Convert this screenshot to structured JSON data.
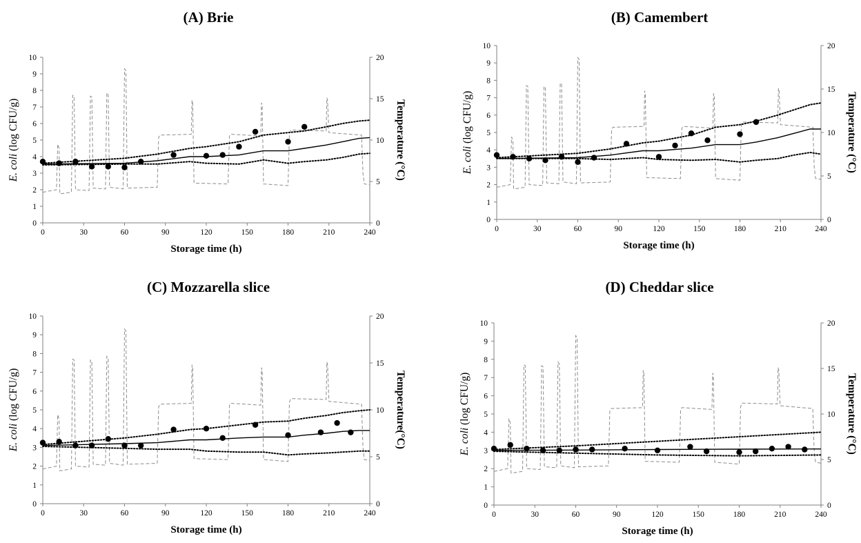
{
  "colors": {
    "axis": "#7f7f7f",
    "temperature": "#8c8c8c",
    "data": "#000000"
  },
  "chart_data": [
    {
      "type": "line",
      "title": "(A) Brie",
      "xlabel": "Storage time (h)",
      "ylabel_italic": "E. coli",
      "ylabel_rest": " (log CFU/g)",
      "y2label": "Temperature (°C)",
      "xlim": [
        0,
        240
      ],
      "ylim": [
        0,
        10
      ],
      "y2lim": [
        0,
        20
      ],
      "x_ticks": [
        "0",
        "30",
        "60",
        "90",
        "120",
        "150",
        "180",
        "210",
        "240"
      ],
      "y_ticks": [
        "0",
        "1",
        "2",
        "3",
        "4",
        "5",
        "6",
        "7",
        "8",
        "9",
        "10"
      ],
      "y2_ticks": [
        "0",
        "5",
        "10",
        "15",
        "20"
      ],
      "legend": "none",
      "observed": {
        "x": [
          0,
          12,
          24,
          36,
          48,
          60,
          72,
          96,
          120,
          132,
          144,
          156,
          180,
          192
        ],
        "y": [
          3.7,
          3.6,
          3.7,
          3.4,
          3.4,
          3.35,
          3.7,
          4.1,
          4.05,
          4.1,
          4.6,
          5.5,
          4.9,
          5.8
        ]
      },
      "predicted": {
        "x": [
          0,
          60,
          84,
          108,
          120,
          144,
          162,
          180,
          192,
          208,
          220,
          232,
          240
        ],
        "y": [
          3.55,
          3.6,
          3.75,
          4.0,
          4.0,
          4.1,
          4.35,
          4.35,
          4.5,
          4.7,
          4.9,
          5.1,
          5.15
        ]
      },
      "upper_bound": {
        "x": [
          0,
          60,
          84,
          108,
          120,
          144,
          162,
          180,
          192,
          208,
          220,
          232,
          240
        ],
        "y": [
          3.6,
          3.9,
          4.15,
          4.5,
          4.6,
          4.9,
          5.3,
          5.45,
          5.55,
          5.8,
          6.0,
          6.15,
          6.2
        ]
      },
      "lower_bound": {
        "x": [
          0,
          60,
          84,
          108,
          120,
          144,
          162,
          180,
          192,
          208,
          220,
          232,
          240
        ],
        "y": [
          3.5,
          3.55,
          3.55,
          3.7,
          3.6,
          3.55,
          3.8,
          3.6,
          3.7,
          3.8,
          3.95,
          4.15,
          4.2
        ]
      },
      "temperature": {
        "x": [
          0,
          10,
          11,
          12,
          12.5,
          21,
          22,
          23,
          24,
          34,
          35,
          36,
          37,
          46,
          47,
          48,
          49,
          59,
          60,
          61,
          62,
          84,
          85,
          86,
          109,
          109.5,
          110,
          111,
          136,
          137,
          138,
          160,
          160.5,
          161,
          162,
          180,
          181,
          182,
          208,
          208.5,
          209,
          210,
          234,
          235,
          236,
          240
        ],
        "y": [
          3.7,
          4,
          9.5,
          9,
          3.5,
          3.7,
          15.4,
          15.3,
          4,
          3.9,
          15.3,
          15.2,
          4.2,
          4.1,
          15.7,
          15.5,
          4.3,
          4.1,
          18.6,
          18.4,
          4.2,
          4.3,
          10.3,
          10.6,
          10.7,
          14.8,
          14.5,
          4.8,
          4.7,
          10.5,
          10.7,
          10.5,
          14.5,
          14.2,
          4.7,
          4.5,
          10.8,
          11.2,
          11.1,
          15.1,
          14.8,
          10.9,
          10.6,
          6,
          4.7,
          4.6
        ]
      }
    },
    {
      "type": "line",
      "title": "(B) Camembert",
      "xlabel": "Storage time (h)",
      "ylabel_italic": "E. coli",
      "ylabel_rest": " (log CFU/g)",
      "y2label": "Temperature (°C)",
      "xlim": [
        0,
        240
      ],
      "ylim": [
        0,
        10
      ],
      "y2lim": [
        0,
        20
      ],
      "x_ticks": [
        "0",
        "30",
        "60",
        "90",
        "120",
        "150",
        "180",
        "210",
        "240"
      ],
      "y_ticks": [
        "0",
        "1",
        "2",
        "3",
        "4",
        "5",
        "6",
        "7",
        "8",
        "9",
        "10"
      ],
      "y2_ticks": [
        "0",
        "5",
        "10",
        "15",
        "20"
      ],
      "legend": "none",
      "observed": {
        "x": [
          0,
          12,
          24,
          36,
          48,
          60,
          72,
          96,
          120,
          132,
          144,
          156,
          180,
          192
        ],
        "y": [
          3.7,
          3.6,
          3.5,
          3.4,
          3.6,
          3.3,
          3.55,
          4.35,
          3.6,
          4.25,
          4.95,
          4.55,
          4.9,
          5.6
        ]
      },
      "predicted": {
        "x": [
          0,
          60,
          84,
          108,
          120,
          144,
          162,
          180,
          192,
          208,
          220,
          232,
          240
        ],
        "y": [
          3.5,
          3.55,
          3.7,
          3.95,
          3.95,
          4.1,
          4.3,
          4.3,
          4.45,
          4.7,
          4.95,
          5.2,
          5.2
        ]
      },
      "upper_bound": {
        "x": [
          0,
          60,
          84,
          108,
          120,
          144,
          162,
          180,
          192,
          208,
          220,
          232,
          240
        ],
        "y": [
          3.55,
          3.8,
          4.05,
          4.4,
          4.5,
          4.85,
          5.3,
          5.45,
          5.65,
          6.0,
          6.3,
          6.6,
          6.7
        ]
      },
      "lower_bound": {
        "x": [
          0,
          60,
          84,
          108,
          120,
          144,
          162,
          180,
          192,
          208,
          220,
          232,
          240
        ],
        "y": [
          3.5,
          3.5,
          3.45,
          3.55,
          3.45,
          3.4,
          3.45,
          3.3,
          3.4,
          3.5,
          3.7,
          3.85,
          3.75
        ]
      },
      "temperature": {
        "x": [
          0,
          10,
          11,
          12,
          12.5,
          21,
          22,
          23,
          24,
          34,
          35,
          36,
          37,
          46,
          47,
          48,
          49,
          59,
          60,
          61,
          62,
          84,
          85,
          86,
          109,
          109.5,
          110,
          111,
          136,
          137,
          138,
          160,
          160.5,
          161,
          162,
          180,
          181,
          182,
          208,
          208.5,
          209,
          210,
          234,
          235,
          236,
          240
        ],
        "y": [
          3.7,
          4,
          9.5,
          9,
          3.5,
          3.7,
          15.4,
          15.3,
          4,
          3.9,
          15.3,
          15.2,
          4.2,
          4.1,
          15.7,
          15.5,
          4.3,
          4.1,
          18.6,
          18.4,
          4.2,
          4.3,
          10.3,
          10.6,
          10.7,
          14.8,
          14.5,
          4.8,
          4.7,
          10.5,
          10.7,
          10.5,
          14.5,
          14.2,
          4.7,
          4.5,
          10.8,
          11.2,
          11.1,
          15.1,
          14.8,
          10.9,
          10.6,
          6,
          4.7,
          4.6
        ]
      }
    },
    {
      "type": "line",
      "title": "(C) Mozzarella slice",
      "xlabel": "Storage time (h)",
      "ylabel_italic": "E. coli",
      "ylabel_rest": " (log CFU/g)",
      "y2label": "Temperature(°C)",
      "xlim": [
        0,
        240
      ],
      "ylim": [
        0,
        10
      ],
      "y2lim": [
        0,
        20
      ],
      "x_ticks": [
        "0",
        "30",
        "60",
        "90",
        "120",
        "150",
        "180",
        "210",
        "240"
      ],
      "y_ticks": [
        "0",
        "1",
        "2",
        "3",
        "4",
        "5",
        "6",
        "7",
        "8",
        "9",
        "10"
      ],
      "y2_ticks": [
        "0",
        "5",
        "10",
        "15",
        "20"
      ],
      "legend": "none",
      "observed": {
        "x": [
          0,
          12,
          24,
          36,
          48,
          60,
          72,
          96,
          120,
          132,
          156,
          180,
          204,
          216,
          226
        ],
        "y": [
          3.25,
          3.3,
          3.1,
          3.1,
          3.45,
          3.1,
          3.1,
          3.95,
          4.0,
          3.5,
          4.2,
          3.65,
          3.8,
          4.3,
          3.8
        ]
      },
      "predicted": {
        "x": [
          0,
          60,
          84,
          108,
          120,
          144,
          162,
          180,
          192,
          208,
          220,
          232,
          240
        ],
        "y": [
          3.1,
          3.2,
          3.25,
          3.4,
          3.4,
          3.5,
          3.55,
          3.55,
          3.65,
          3.75,
          3.85,
          3.9,
          3.9
        ]
      },
      "upper_bound": {
        "x": [
          0,
          60,
          84,
          108,
          120,
          144,
          162,
          180,
          192,
          208,
          220,
          232,
          240
        ],
        "y": [
          3.15,
          3.5,
          3.7,
          3.95,
          4.0,
          4.2,
          4.35,
          4.4,
          4.55,
          4.7,
          4.85,
          4.95,
          5.0
        ]
      },
      "lower_bound": {
        "x": [
          0,
          60,
          84,
          108,
          120,
          144,
          162,
          180,
          192,
          208,
          220,
          232,
          240
        ],
        "y": [
          3.05,
          2.95,
          2.9,
          2.9,
          2.8,
          2.75,
          2.75,
          2.6,
          2.65,
          2.7,
          2.75,
          2.8,
          2.8
        ]
      },
      "temperature": {
        "x": [
          0,
          10,
          11,
          12,
          12.5,
          21,
          22,
          23,
          24,
          34,
          35,
          36,
          37,
          46,
          47,
          48,
          49,
          59,
          60,
          61,
          62,
          84,
          85,
          86,
          109,
          109.5,
          110,
          111,
          136,
          137,
          138,
          160,
          160.5,
          161,
          162,
          180,
          181,
          182,
          208,
          208.5,
          209,
          210,
          234,
          235,
          236,
          240
        ],
        "y": [
          3.7,
          4,
          9.5,
          9,
          3.5,
          3.7,
          15.4,
          15.3,
          4,
          3.9,
          15.3,
          15.2,
          4.2,
          4.1,
          15.7,
          15.5,
          4.3,
          4.1,
          18.6,
          18.4,
          4.2,
          4.3,
          10.3,
          10.6,
          10.7,
          14.8,
          14.5,
          4.8,
          4.7,
          10.5,
          10.7,
          10.5,
          14.5,
          14.2,
          4.7,
          4.5,
          10.8,
          11.2,
          11.1,
          15.1,
          14.8,
          10.9,
          10.6,
          6,
          4.7,
          4.6
        ]
      }
    },
    {
      "type": "line",
      "title": "(D) Cheddar slice",
      "xlabel": "Storage time (h)",
      "ylabel_italic": "E. coli",
      "ylabel_rest": " (log CFU/g)",
      "y2label": "Temperature (°C)",
      "xlim": [
        0,
        240
      ],
      "ylim": [
        0,
        10
      ],
      "y2lim": [
        0,
        20
      ],
      "x_ticks": [
        "0",
        "30",
        "60",
        "90",
        "120",
        "150",
        "180",
        "210",
        "240"
      ],
      "y_ticks": [
        "0",
        "1",
        "2",
        "3",
        "4",
        "5",
        "6",
        "7",
        "8",
        "9",
        "10"
      ],
      "y2_ticks": [
        "0",
        "5",
        "10",
        "15",
        "20"
      ],
      "legend": "none",
      "observed": {
        "x": [
          0,
          12,
          24,
          36,
          48,
          60,
          72,
          96,
          120,
          144,
          156,
          180,
          192,
          204,
          216,
          228
        ],
        "y": [
          3.1,
          3.3,
          3.1,
          3.0,
          3.0,
          3.05,
          3.05,
          3.1,
          3.0,
          3.2,
          2.95,
          2.9,
          2.95,
          3.1,
          3.2,
          3.05
        ]
      },
      "predicted": {
        "x": [
          0,
          60,
          120,
          180,
          240
        ],
        "y": [
          3.0,
          3.02,
          3.05,
          3.07,
          3.08
        ]
      },
      "upper_bound": {
        "x": [
          0,
          60,
          120,
          180,
          240
        ],
        "y": [
          3.05,
          3.25,
          3.5,
          3.75,
          4.0
        ]
      },
      "lower_bound": {
        "x": [
          0,
          60,
          120,
          180,
          240
        ],
        "y": [
          2.95,
          2.85,
          2.75,
          2.7,
          2.75
        ]
      },
      "temperature": {
        "x": [
          0,
          10,
          11,
          12,
          12.5,
          21,
          22,
          23,
          24,
          34,
          35,
          36,
          37,
          46,
          47,
          48,
          49,
          59,
          60,
          61,
          62,
          84,
          85,
          86,
          109,
          109.5,
          110,
          111,
          136,
          137,
          138,
          160,
          160.5,
          161,
          162,
          180,
          181,
          182,
          208,
          208.5,
          209,
          210,
          234,
          235,
          236,
          240
        ],
        "y": [
          3.7,
          4,
          9.5,
          9,
          3.5,
          3.7,
          15.4,
          15.3,
          4,
          3.9,
          15.3,
          15.2,
          4.2,
          4.1,
          15.7,
          15.5,
          4.3,
          4.1,
          18.6,
          18.4,
          4.2,
          4.3,
          10.3,
          10.6,
          10.7,
          14.8,
          14.5,
          4.8,
          4.7,
          10.5,
          10.7,
          10.5,
          14.5,
          14.2,
          4.7,
          4.5,
          10.8,
          11.2,
          11.1,
          15.1,
          14.8,
          10.9,
          10.6,
          6,
          4.7,
          4.6
        ]
      }
    }
  ]
}
